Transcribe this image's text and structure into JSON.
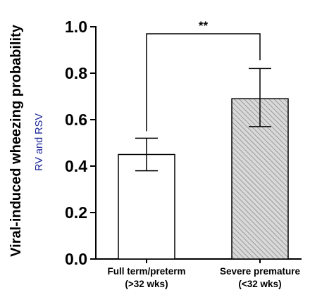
{
  "chart_data": {
    "type": "bar",
    "ylabel": "Viral-induced wheezing probability",
    "ylabel_sub": "RV and RSV",
    "ylim": [
      0,
      1.0
    ],
    "yticks": [
      "0.0",
      "0.2",
      "0.4",
      "0.6",
      "0.8",
      "1.0"
    ],
    "categories": [
      {
        "line1": "Full term/preterm",
        "line2": "(>32 wks)"
      },
      {
        "line1": "Severe premature",
        "line2": "(<32 wks)"
      }
    ],
    "values": [
      0.45,
      0.69
    ],
    "error_bars": [
      {
        "lower": 0.38,
        "upper": 0.52
      },
      {
        "lower": 0.57,
        "upper": 0.82
      }
    ],
    "fills": [
      "open",
      "hatched"
    ],
    "significance": {
      "label": "**",
      "between": [
        0,
        1
      ]
    },
    "grid": false,
    "colors": {
      "axis": "#000000",
      "hatch": "#9a9a9a",
      "sublabel": "#1f2a9a"
    }
  }
}
